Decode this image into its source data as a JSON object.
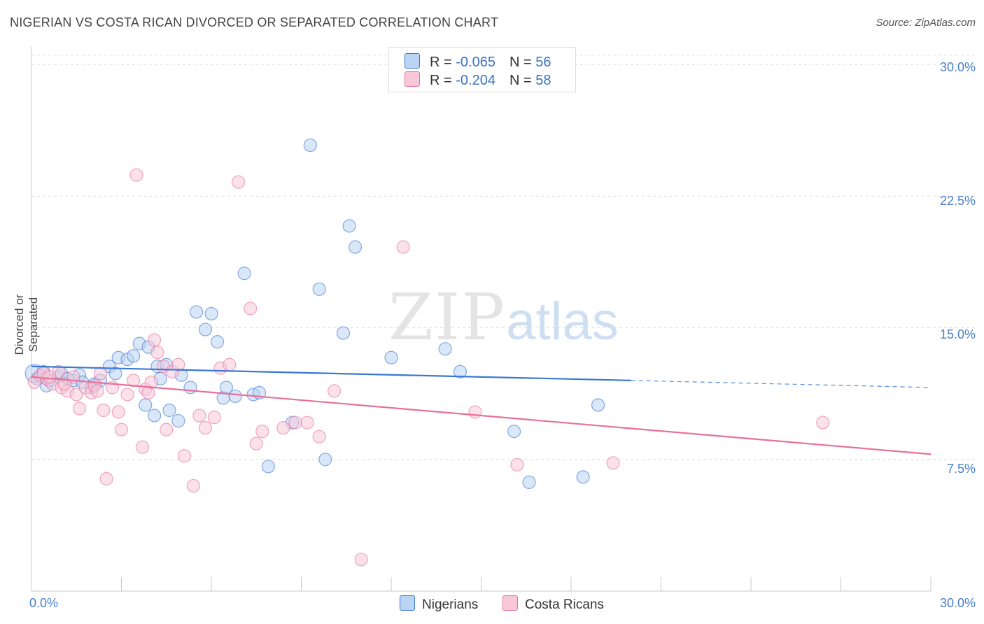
{
  "title": "NIGERIAN VS COSTA RICAN DIVORCED OR SEPARATED CORRELATION CHART",
  "source": "Source: ZipAtlas.com",
  "watermark": {
    "zip": "ZIP",
    "atlas": "atlas"
  },
  "legend_top": [
    {
      "r_label": "R = ",
      "r_value": "-0.065",
      "n_label": "N = ",
      "n_value": "56"
    },
    {
      "r_label": "R = ",
      "r_value": "-0.204",
      "n_label": "N = ",
      "n_value": "58"
    }
  ],
  "colors": {
    "nigerians": "#3b78d4",
    "costa_ricans": "#e8709a",
    "nigerians_fill": "#bcd4f3",
    "costa_ricans_fill": "#f8c8d8",
    "tick_text": "#4a7fc9"
  },
  "chart_data": {
    "type": "scatter",
    "title": "NIGERIAN VS COSTA RICAN DIVORCED OR SEPARATED CORRELATION CHART",
    "xlabel": "",
    "ylabel": "Divorced or Separated",
    "xlim": [
      0,
      30
    ],
    "ylim": [
      0,
      31
    ],
    "x_tick_labels": [
      "0.0%",
      "30.0%"
    ],
    "y_ticks": [
      7.5,
      15.0,
      22.5,
      30.0
    ],
    "y_tick_labels": [
      "7.5%",
      "15.0%",
      "22.5%",
      "30.0%"
    ],
    "grid": true,
    "legend_placement": "bottom-center",
    "series": [
      {
        "name": "Nigerians",
        "r": -0.065,
        "n": 56,
        "trend": {
          "x0": 0,
          "y0": 12.8,
          "x1": 20,
          "y1": 12.0,
          "dashed_to_x": 30,
          "dashed_to_y": 11.6
        },
        "points": [
          [
            0.1,
            12.4
          ],
          [
            0.3,
            12.2
          ],
          [
            0.4,
            12.5
          ],
          [
            0.5,
            11.7
          ],
          [
            0.6,
            12.0
          ],
          [
            0.9,
            12.2
          ],
          [
            1.0,
            12.4
          ],
          [
            1.2,
            12.1
          ],
          [
            1.4,
            12.0
          ],
          [
            1.6,
            12.3
          ],
          [
            1.7,
            11.9
          ],
          [
            2.0,
            11.6
          ],
          [
            2.1,
            11.8
          ],
          [
            2.3,
            12.0
          ],
          [
            2.6,
            12.8
          ],
          [
            2.8,
            12.4
          ],
          [
            2.9,
            13.3
          ],
          [
            3.2,
            13.2
          ],
          [
            3.4,
            13.4
          ],
          [
            3.6,
            14.1
          ],
          [
            3.9,
            13.9
          ],
          [
            4.2,
            12.8
          ],
          [
            4.3,
            12.1
          ],
          [
            3.8,
            10.6
          ],
          [
            4.1,
            10.0
          ],
          [
            4.5,
            12.9
          ],
          [
            4.6,
            10.3
          ],
          [
            4.9,
            9.7
          ],
          [
            5.0,
            12.3
          ],
          [
            5.3,
            11.6
          ],
          [
            5.5,
            15.9
          ],
          [
            5.8,
            14.9
          ],
          [
            6.0,
            15.8
          ],
          [
            6.2,
            14.2
          ],
          [
            6.4,
            11.0
          ],
          [
            6.5,
            11.6
          ],
          [
            6.8,
            11.1
          ],
          [
            7.1,
            18.1
          ],
          [
            7.4,
            11.2
          ],
          [
            7.6,
            11.3
          ],
          [
            7.9,
            7.1
          ],
          [
            8.7,
            9.6
          ],
          [
            9.3,
            25.4
          ],
          [
            9.6,
            17.2
          ],
          [
            9.8,
            7.5
          ],
          [
            10.4,
            14.7
          ],
          [
            10.6,
            20.8
          ],
          [
            10.8,
            19.6
          ],
          [
            12.0,
            13.3
          ],
          [
            13.8,
            13.8
          ],
          [
            14.3,
            12.5
          ],
          [
            16.1,
            9.1
          ],
          [
            16.6,
            6.2
          ],
          [
            18.4,
            6.5
          ],
          [
            18.9,
            10.6
          ],
          [
            0.2,
            12.1
          ]
        ]
      },
      {
        "name": "Costa Ricans",
        "r": -0.204,
        "n": 58,
        "trend": {
          "x0": 0,
          "y0": 12.2,
          "x1": 30,
          "y1": 7.8
        },
        "points": [
          [
            0.1,
            11.9
          ],
          [
            0.3,
            12.3
          ],
          [
            0.5,
            12.1
          ],
          [
            0.7,
            11.8
          ],
          [
            0.9,
            12.5
          ],
          [
            1.0,
            11.6
          ],
          [
            1.2,
            11.4
          ],
          [
            1.4,
            12.2
          ],
          [
            1.5,
            11.2
          ],
          [
            1.6,
            10.4
          ],
          [
            1.8,
            11.6
          ],
          [
            2.0,
            11.3
          ],
          [
            2.1,
            11.7
          ],
          [
            2.3,
            12.4
          ],
          [
            2.4,
            10.3
          ],
          [
            2.5,
            6.4
          ],
          [
            2.7,
            11.6
          ],
          [
            2.9,
            10.2
          ],
          [
            3.0,
            9.2
          ],
          [
            3.2,
            11.2
          ],
          [
            3.4,
            12.0
          ],
          [
            3.5,
            23.7
          ],
          [
            3.7,
            8.2
          ],
          [
            3.8,
            11.5
          ],
          [
            3.9,
            11.3
          ],
          [
            4.1,
            14.3
          ],
          [
            4.2,
            13.6
          ],
          [
            4.4,
            12.8
          ],
          [
            4.5,
            9.2
          ],
          [
            4.7,
            12.5
          ],
          [
            4.9,
            12.9
          ],
          [
            5.1,
            7.7
          ],
          [
            5.4,
            6.0
          ],
          [
            5.6,
            10.0
          ],
          [
            5.8,
            9.3
          ],
          [
            6.1,
            9.9
          ],
          [
            6.3,
            12.7
          ],
          [
            6.6,
            12.9
          ],
          [
            6.9,
            23.3
          ],
          [
            7.3,
            16.1
          ],
          [
            7.5,
            8.4
          ],
          [
            7.7,
            9.1
          ],
          [
            8.4,
            9.3
          ],
          [
            8.8,
            9.6
          ],
          [
            9.2,
            9.6
          ],
          [
            9.6,
            8.8
          ],
          [
            10.1,
            11.4
          ],
          [
            11.0,
            1.8
          ],
          [
            12.4,
            19.6
          ],
          [
            14.8,
            10.2
          ],
          [
            16.2,
            7.2
          ],
          [
            19.4,
            7.3
          ],
          [
            26.4,
            9.6
          ],
          [
            0.4,
            12.4
          ],
          [
            0.6,
            12.2
          ],
          [
            1.1,
            11.8
          ],
          [
            2.2,
            11.4
          ],
          [
            4.0,
            11.9
          ]
        ]
      }
    ]
  }
}
